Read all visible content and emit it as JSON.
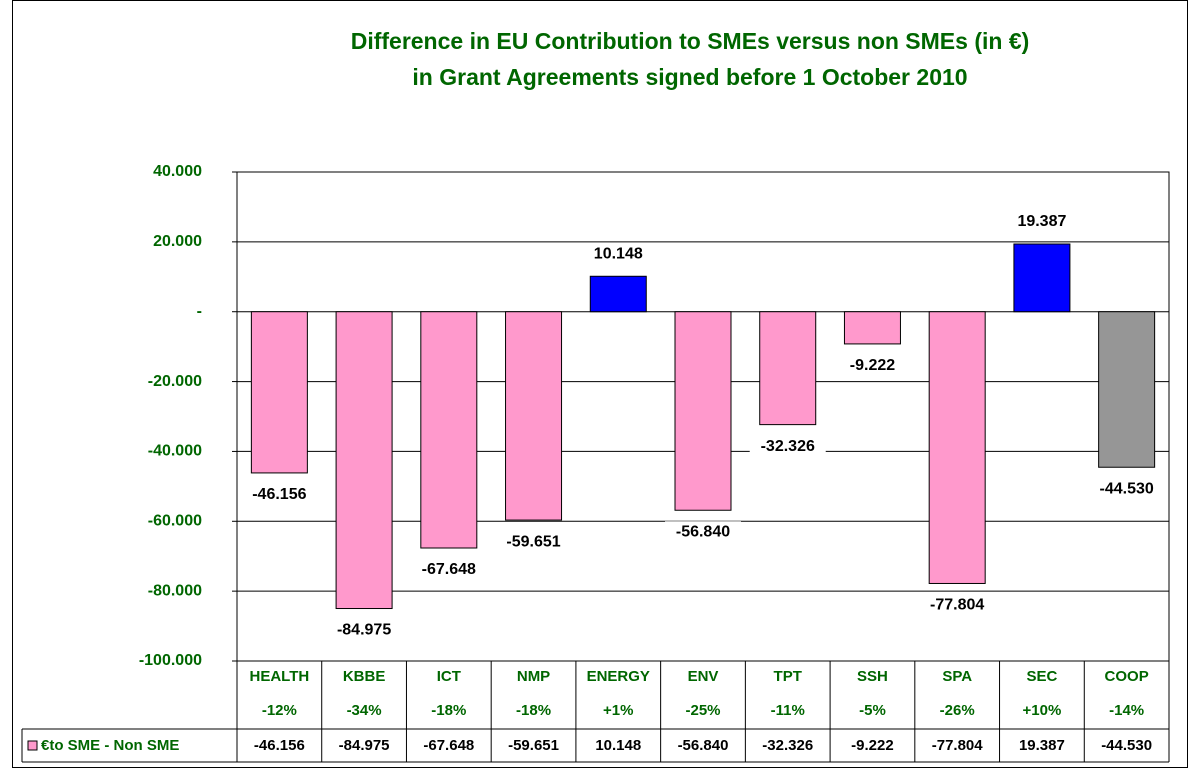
{
  "chart_data": {
    "type": "bar",
    "title": [
      "Difference in EU Contribution to SMEs versus non SMEs (in €)",
      "in  Grant Agreements signed before 1 October 2010"
    ],
    "categories": [
      "HEALTH",
      "KBBE",
      "ICT",
      "NMP",
      "ENERGY",
      "ENV",
      "TPT",
      "SSH",
      "SPA",
      "SEC",
      "COOP"
    ],
    "category_shares": [
      "-12%",
      "-34%",
      "-18%",
      "-18%",
      "+1%",
      "-25%",
      "-11%",
      "-5%",
      "-26%",
      "+10%",
      "-14%"
    ],
    "series": [
      {
        "name": "€to SME - Non SME",
        "color": "#ff99cc",
        "colors": [
          "#ff99cc",
          "#ff99cc",
          "#ff99cc",
          "#ff99cc",
          "#0000ff",
          "#ff99cc",
          "#ff99cc",
          "#ff99cc",
          "#ff99cc",
          "#0000ff",
          "#969696"
        ],
        "values": [
          -46156,
          -84975,
          -67648,
          -59651,
          10148,
          -56840,
          -32326,
          -9222,
          -77804,
          19387,
          -44530
        ],
        "value_labels": [
          "-46.156",
          "-84.975",
          "-67.648",
          "-59.651",
          "10.148",
          "-56.840",
          "-32.326",
          "-9.222",
          "-77.804",
          "19.387",
          "-44.530"
        ]
      }
    ],
    "ylim": [
      -100000,
      40000
    ],
    "yticks": [
      {
        "value": 40000,
        "label": "40.000"
      },
      {
        "value": 20000,
        "label": "20.000"
      },
      {
        "value": 0,
        "label": "-"
      },
      {
        "value": -20000,
        "label": "-20.000"
      },
      {
        "value": -40000,
        "label": "-40.000"
      },
      {
        "value": -60000,
        "label": "-60.000"
      },
      {
        "value": -80000,
        "label": "-80.000"
      },
      {
        "value": -100000,
        "label": "-100.000"
      }
    ],
    "grid": true
  }
}
